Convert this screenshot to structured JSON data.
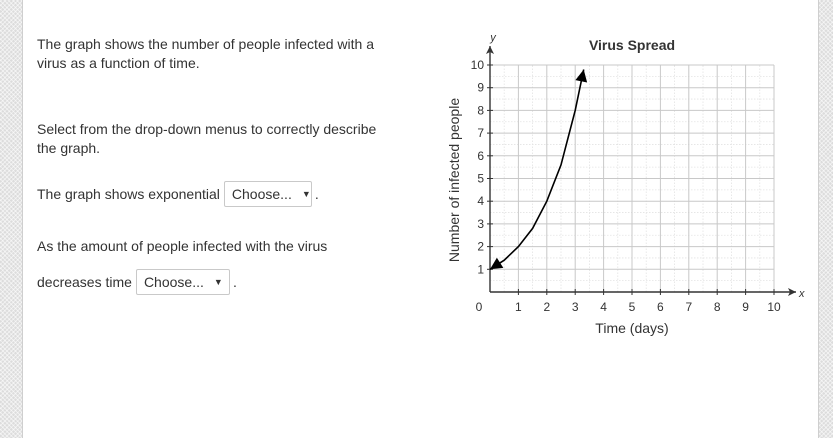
{
  "question": {
    "intro": "The graph shows the number of people infected with a virus as a function of time.",
    "instruction": "Select from the drop-down menus to correctly describe the graph.",
    "statement1": {
      "prefix": "The graph shows exponential",
      "dropdown_value": "Choose...",
      "suffix": "."
    },
    "statement2_line1": "As the amount of people infected with the virus",
    "statement2": {
      "prefix": "decreases time",
      "dropdown_value": "Choose...",
      "suffix": "."
    }
  },
  "icons": {
    "dropdown_arrow": "▼"
  },
  "chart_data": {
    "type": "line",
    "title": "Virus Spread",
    "xlabel": "Time (days)",
    "ylabel": "Number of infected people",
    "x_axis_name": "x",
    "y_axis_name": "y",
    "xlim": [
      0,
      10
    ],
    "ylim": [
      0,
      10
    ],
    "x_ticks": [
      1,
      2,
      3,
      4,
      5,
      6,
      7,
      8,
      9,
      10
    ],
    "y_ticks": [
      1,
      2,
      3,
      4,
      5,
      6,
      7,
      8,
      9,
      10
    ],
    "origin_label": "0",
    "grid": true,
    "series": [
      {
        "x": [
          0,
          0.5,
          1,
          1.5,
          2,
          2.5,
          3,
          3.3
        ],
        "y": [
          1,
          1.4,
          2.0,
          2.8,
          4.0,
          5.6,
          8.0,
          9.8
        ]
      }
    ],
    "curve_color": "#000000",
    "grid_color": "#c8c8c8"
  }
}
